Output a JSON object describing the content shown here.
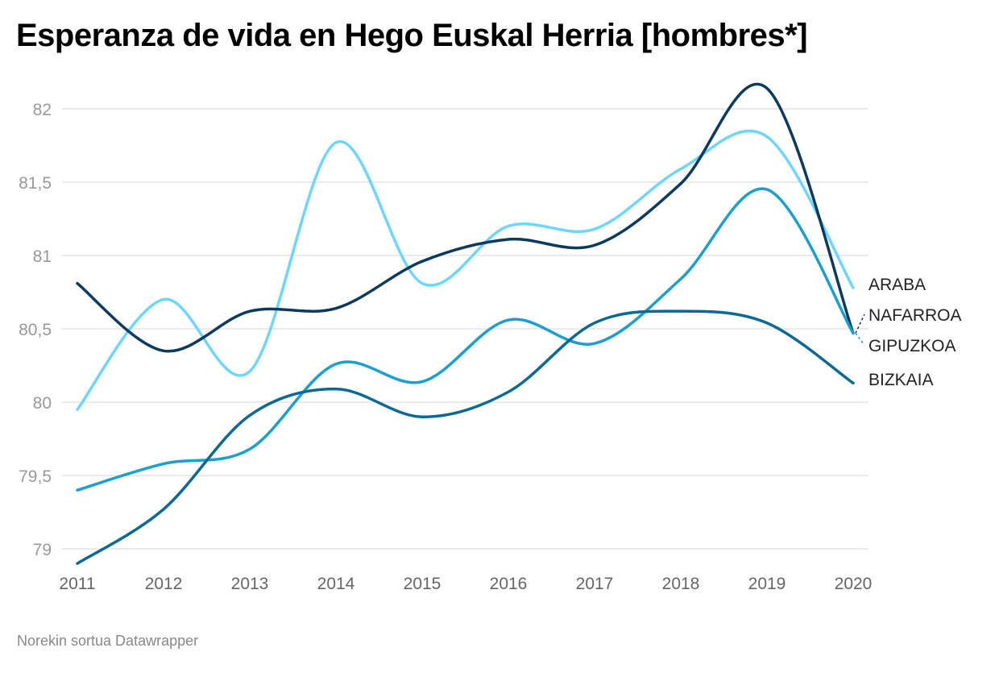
{
  "chart_data": {
    "type": "line",
    "title": "Esperanza de vida en Hego Euskal Herria [hombres*]",
    "xlabel": "",
    "ylabel": "",
    "x": [
      2011,
      2012,
      2013,
      2014,
      2015,
      2016,
      2017,
      2018,
      2019,
      2020
    ],
    "ylim": [
      79,
      82
    ],
    "yticks": [
      79,
      79.5,
      80,
      80.5,
      81,
      81.5,
      82
    ],
    "ytick_labels": [
      "79",
      "79,5",
      "80",
      "80,5",
      "81",
      "81,5",
      "82"
    ],
    "grid": true,
    "legend": "direct labels right",
    "series": [
      {
        "name": "ARABA",
        "color": "#6dd6ff",
        "values": [
          79.95,
          80.7,
          80.21,
          81.77,
          80.81,
          81.2,
          81.18,
          81.59,
          81.81,
          80.78
        ]
      },
      {
        "name": "NAFARROA",
        "color": "#0b3a5e",
        "values": [
          80.81,
          80.35,
          80.62,
          80.64,
          80.96,
          81.11,
          81.07,
          81.49,
          82.14,
          80.47
        ]
      },
      {
        "name": "GIPUZKOA",
        "color": "#1a9fcf",
        "values": [
          79.4,
          79.58,
          79.68,
          80.26,
          80.14,
          80.56,
          80.4,
          80.84,
          81.45,
          80.47
        ]
      },
      {
        "name": "BIZKAIA",
        "color": "#0a6a94",
        "values": [
          78.9,
          79.27,
          79.91,
          80.09,
          79.9,
          80.07,
          80.54,
          80.62,
          80.54,
          80.13
        ]
      }
    ]
  },
  "footer": "Norekin sortua Datawrapper"
}
